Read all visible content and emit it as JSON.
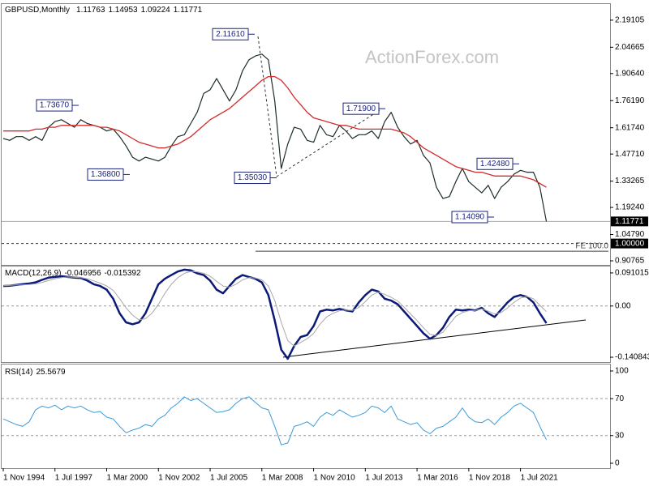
{
  "chart_data": [
    {
      "type": "line",
      "title": "GBPUSD,Monthly",
      "last_bar": {
        "open": 1.11763,
        "high": 1.14953,
        "low": 1.09224,
        "close": 1.11771
      },
      "watermark": "ActionForex.com",
      "ylim": [
        0.886,
        2.277
      ],
      "yticks": [
        2.19105,
        2.04665,
        {
          "value": 1.9064,
          "label": "1.90640"
        },
        {
          "value": 1.7619,
          "label": "1.76190"
        },
        {
          "value": 1.6174,
          "label": "1.61740"
        },
        {
          "value": 1.4771,
          "label": "1.47710"
        },
        1.33265,
        {
          "value": 1.1924,
          "label": "1.19240"
        },
        {
          "value": 1.0479,
          "label": "1.04790"
        },
        0.90765
      ],
      "series": [
        {
          "color": "#1c2e26",
          "values": [
            1.56,
            1.55,
            1.57,
            1.57,
            1.55,
            1.57,
            1.55,
            1.62,
            1.65,
            1.66,
            1.64,
            1.62,
            1.66,
            1.64,
            1.63,
            1.62,
            1.6,
            1.61,
            1.57,
            1.52,
            1.46,
            1.44,
            1.46,
            1.45,
            1.44,
            1.46,
            1.52,
            1.57,
            1.58,
            1.64,
            1.7,
            1.8,
            1.82,
            1.88,
            1.82,
            1.76,
            1.82,
            1.92,
            1.98,
            2.0,
            2.01,
            1.98,
            1.76,
            1.4,
            1.53,
            1.62,
            1.61,
            1.55,
            1.54,
            1.63,
            1.58,
            1.57,
            1.63,
            1.6,
            1.56,
            1.58,
            1.58,
            1.6,
            1.56,
            1.65,
            1.7,
            1.62,
            1.57,
            1.53,
            1.55,
            1.47,
            1.43,
            1.3,
            1.24,
            1.25,
            1.33,
            1.4,
            1.33,
            1.3,
            1.27,
            1.31,
            1.24,
            1.3,
            1.33,
            1.37,
            1.39,
            1.38,
            1.38,
            1.3,
            1.11771
          ]
        },
        {
          "color": "#d42a2a",
          "values": [
            1.6,
            1.6,
            1.6,
            1.6,
            1.6,
            1.61,
            1.61,
            1.62,
            1.62,
            1.63,
            1.63,
            1.63,
            1.63,
            1.63,
            1.63,
            1.62,
            1.62,
            1.61,
            1.6,
            1.58,
            1.56,
            1.54,
            1.53,
            1.52,
            1.51,
            1.51,
            1.52,
            1.53,
            1.55,
            1.57,
            1.6,
            1.63,
            1.66,
            1.68,
            1.7,
            1.72,
            1.75,
            1.78,
            1.81,
            1.84,
            1.87,
            1.89,
            1.89,
            1.87,
            1.83,
            1.78,
            1.74,
            1.7,
            1.67,
            1.66,
            1.65,
            1.64,
            1.63,
            1.63,
            1.62,
            1.61,
            1.61,
            1.61,
            1.61,
            1.61,
            1.61,
            1.6,
            1.59,
            1.57,
            1.54,
            1.51,
            1.49,
            1.47,
            1.45,
            1.43,
            1.41,
            1.4,
            1.39,
            1.38,
            1.38,
            1.37,
            1.36,
            1.36,
            1.36,
            1.36,
            1.36,
            1.35,
            1.34,
            1.32,
            1.3
          ]
        }
      ],
      "annotations": [
        {
          "label": "1.73670",
          "value": 1.7367
        },
        {
          "label": "1.36800",
          "value": 1.368
        },
        {
          "label": "2.11610",
          "value": 2.1161
        },
        {
          "label": "1.35030",
          "value": 1.3503
        },
        {
          "label": "1.71900",
          "value": 1.719
        },
        {
          "label": "1.14090",
          "value": 1.1409
        },
        {
          "label": "1.42480",
          "value": 1.4248
        }
      ],
      "levels": [
        {
          "label": "1.00000",
          "value": 1
        }
      ],
      "fe": {
        "label": "FE 100.0",
        "value": 0.959
      }
    },
    {
      "type": "line",
      "title": "MACD(12,26,9)",
      "latest": [
        -0.046956,
        -0.015392
      ],
      "ylim": [
        -0.1541,
        0.1087
      ],
      "yticks": [
        0.091015,
        {
          "value": 0,
          "label": "0.00"
        },
        -0.140843
      ],
      "levels": [
        0
      ],
      "series": [
        {
          "color": "#0b1a78",
          "values": [
            0.055,
            0.056,
            0.058,
            0.06,
            0.062,
            0.065,
            0.072,
            0.078,
            0.08,
            0.082,
            0.08,
            0.078,
            0.077,
            0.07,
            0.06,
            0.055,
            0.045,
            0.02,
            -0.02,
            -0.045,
            -0.05,
            -0.045,
            -0.02,
            0.02,
            0.06,
            0.075,
            0.085,
            0.095,
            0.1,
            0.098,
            0.09,
            0.085,
            0.07,
            0.045,
            0.035,
            0.055,
            0.075,
            0.085,
            0.08,
            0.075,
            0.065,
            0.03,
            -0.04,
            -0.12,
            -0.145,
            -0.11,
            -0.085,
            -0.08,
            -0.055,
            -0.015,
            -0.01,
            -0.012,
            -0.008,
            -0.012,
            -0.015,
            0.01,
            0.03,
            0.045,
            0.04,
            0.02,
            0.015,
            0.005,
            -0.015,
            -0.035,
            -0.055,
            -0.075,
            -0.09,
            -0.08,
            -0.06,
            -0.03,
            -0.01,
            -0.012,
            -0.01,
            -0.012,
            -0.005,
            -0.02,
            -0.03,
            -0.01,
            0.01,
            0.025,
            0.03,
            0.025,
            0.01,
            -0.02,
            -0.046956
          ]
        },
        {
          "color": "#a8a8a8",
          "values": [
            0.056,
            0.057,
            0.058,
            0.058,
            0.059,
            0.061,
            0.065,
            0.07,
            0.075,
            0.078,
            0.08,
            0.079,
            0.078,
            0.075,
            0.069,
            0.063,
            0.055,
            0.043,
            0.02,
            -0.005,
            -0.025,
            -0.038,
            -0.035,
            -0.02,
            0.005,
            0.035,
            0.06,
            0.078,
            0.09,
            0.095,
            0.094,
            0.09,
            0.082,
            0.068,
            0.055,
            0.052,
            0.06,
            0.072,
            0.078,
            0.077,
            0.072,
            0.055,
            0.015,
            -0.045,
            -0.095,
            -0.11,
            -0.1,
            -0.09,
            -0.075,
            -0.05,
            -0.03,
            -0.02,
            -0.013,
            -0.011,
            -0.012,
            -0.004,
            0.012,
            0.03,
            0.038,
            0.032,
            0.024,
            0.014,
            -0.003,
            -0.022,
            -0.04,
            -0.06,
            -0.078,
            -0.081,
            -0.072,
            -0.05,
            -0.028,
            -0.018,
            -0.013,
            -0.012,
            -0.008,
            -0.014,
            -0.022,
            -0.018,
            -0.005,
            0.01,
            0.022,
            0.026,
            0.02,
            0.002,
            -0.015392
          ]
        }
      ]
    },
    {
      "type": "line",
      "title": "RSI(14)",
      "latest": [
        25.5679
      ],
      "ylim": [
        -5.3,
        107
      ],
      "yticks": [
        100,
        70,
        30,
        0
      ],
      "levels": [
        70,
        30
      ],
      "categories": [
        "1 Nov 1994",
        null,
        null,
        null,
        null,
        null,
        null,
        null,
        "1 Jul 1997",
        null,
        null,
        null,
        null,
        null,
        null,
        null,
        "1 Mar 2000",
        null,
        null,
        null,
        null,
        null,
        null,
        null,
        "1 Nov 2002",
        null,
        null,
        null,
        null,
        null,
        null,
        null,
        "1 Jul 2005",
        null,
        null,
        null,
        null,
        null,
        null,
        null,
        "1 Mar 2008",
        null,
        null,
        null,
        null,
        null,
        null,
        null,
        "1 Nov 2010",
        null,
        null,
        null,
        null,
        null,
        null,
        null,
        "1 Jul 2013",
        null,
        null,
        null,
        null,
        null,
        null,
        null,
        "1 Mar 2016",
        null,
        null,
        null,
        null,
        null,
        null,
        null,
        "1 Nov 2018",
        null,
        null,
        null,
        null,
        null,
        null,
        null,
        "1 Jul 2021",
        null,
        null,
        null,
        null
      ],
      "series": [
        {
          "color": "#3a9ad9",
          "values": [
            48,
            45,
            42,
            40,
            45,
            58,
            62,
            60,
            63,
            58,
            62,
            60,
            62,
            58,
            55,
            56,
            50,
            48,
            40,
            33,
            36,
            38,
            42,
            40,
            48,
            52,
            60,
            65,
            72,
            68,
            70,
            65,
            60,
            55,
            56,
            58,
            65,
            70,
            72,
            66,
            60,
            58,
            40,
            20,
            22,
            40,
            42,
            45,
            40,
            50,
            55,
            52,
            58,
            54,
            50,
            52,
            55,
            62,
            60,
            55,
            62,
            48,
            45,
            42,
            44,
            36,
            32,
            38,
            40,
            45,
            50,
            60,
            50,
            45,
            44,
            48,
            42,
            50,
            55,
            62,
            65,
            60,
            55,
            40,
            25.5679
          ]
        }
      ]
    }
  ]
}
